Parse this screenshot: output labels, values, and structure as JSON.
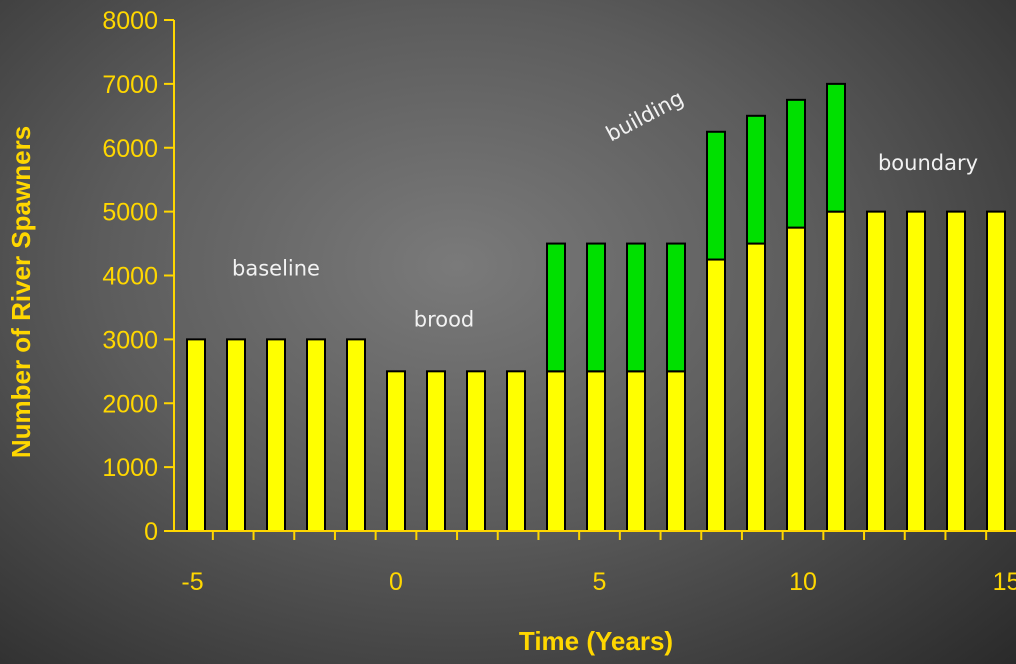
{
  "chart_data": {
    "type": "bar",
    "stacked": true,
    "xlabel": "Time (Years)",
    "ylabel": "Number of River Spawners",
    "ylim": [
      0,
      8000
    ],
    "xlim": [
      -5.5,
      15
    ],
    "x_ticks": [
      -5,
      0,
      5,
      10,
      15
    ],
    "y_ticks": [
      0,
      1000,
      2000,
      3000,
      4000,
      5000,
      6000,
      7000,
      8000
    ],
    "x": [
      -5,
      -4,
      -3,
      -2,
      -1,
      0,
      1,
      2,
      3,
      4,
      5,
      6,
      7,
      8,
      9,
      10,
      11,
      12,
      13,
      14,
      15
    ],
    "series": [
      {
        "color": "#ffff00",
        "values": [
          3000,
          3000,
          3000,
          3000,
          3000,
          2500,
          2500,
          2500,
          2500,
          2500,
          2500,
          2500,
          2500,
          4250,
          4500,
          4750,
          5000,
          5000,
          5000,
          5000,
          5000
        ]
      },
      {
        "color": "#00e000",
        "values": [
          0,
          0,
          0,
          0,
          0,
          0,
          0,
          0,
          0,
          2000,
          2000,
          2000,
          2000,
          2000,
          2000,
          2000,
          2000,
          0,
          0,
          0,
          0
        ]
      }
    ],
    "annotations": [
      {
        "text": "baseline",
        "x": -3,
        "y": 4000
      },
      {
        "text": "brood",
        "x": 1.2,
        "y": 3200
      },
      {
        "text": "building",
        "x": 6.3,
        "y": 6400,
        "rotate": -28
      },
      {
        "text": "boundary",
        "x": 13.3,
        "y": 5650
      }
    ],
    "colors": {
      "axis": "#ffd700",
      "annotation": "#f2f2f2",
      "bar_outline": "#000000"
    }
  }
}
